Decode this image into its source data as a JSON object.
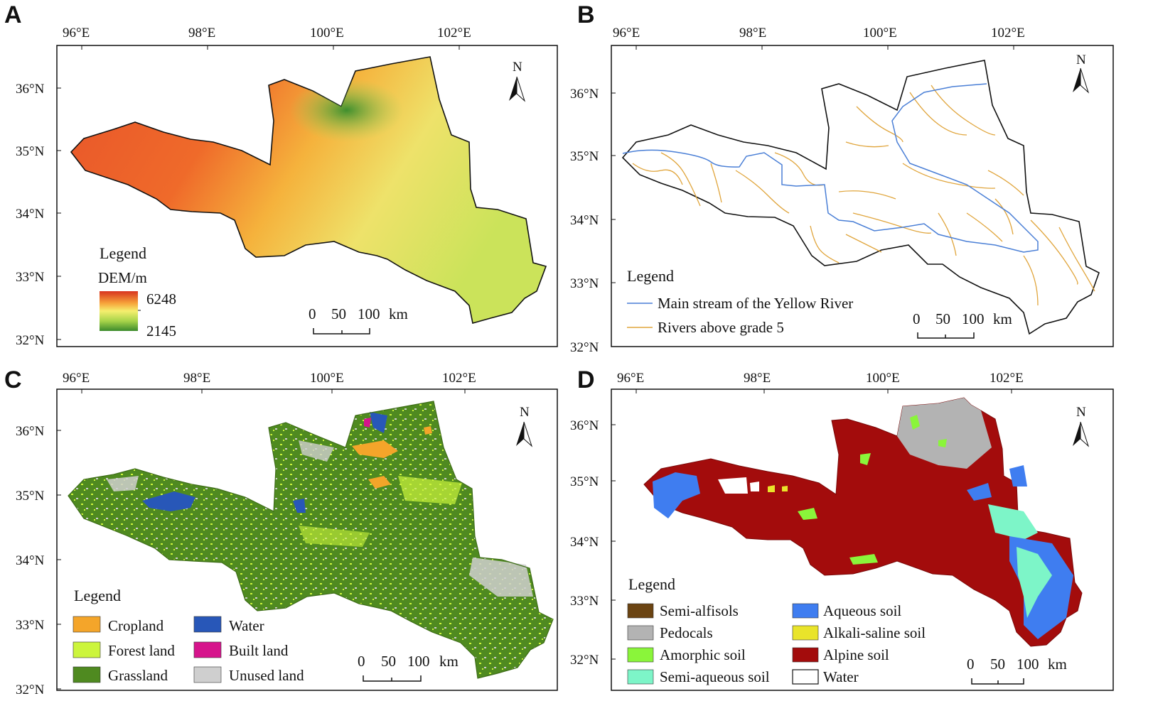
{
  "panels": {
    "a": {
      "letter": "A"
    },
    "b": {
      "letter": "B"
    },
    "c": {
      "letter": "C"
    },
    "d": {
      "letter": "D"
    }
  },
  "axes": {
    "lon": [
      "96°E",
      "98°E",
      "100°E",
      "102°E"
    ],
    "lat_top": [
      "36°N",
      "35°N",
      "34°N",
      "33°N",
      "32°N"
    ],
    "lat_bottom": [
      "36°N",
      "35°N",
      "34°N",
      "33°N",
      "32°N"
    ]
  },
  "north": "N",
  "scale": {
    "zero": "0",
    "mid": "50",
    "end": "100",
    "unit": "km"
  },
  "legend_title": "Legend",
  "dem": {
    "unit_label": "DEM/m",
    "max": "6248",
    "min": "2145",
    "colors": [
      "#d8331f",
      "#f6a33a",
      "#f5ef6e",
      "#a7d44a",
      "#3b8a2b"
    ]
  },
  "rivers": {
    "main": {
      "label": "Main stream of the Yellow River",
      "color": "#4a7fd6"
    },
    "grade5": {
      "label": "Rivers above grade 5",
      "color": "#e0a53c"
    }
  },
  "landuse": [
    {
      "label": "Cropland",
      "color": "#f4a52a"
    },
    {
      "label": "Water",
      "color": "#2857b8"
    },
    {
      "label": "Forest land",
      "color": "#ccf53c"
    },
    {
      "label": "Built land",
      "color": "#d6148c"
    },
    {
      "label": "Grassland",
      "color": "#4f8a20"
    },
    {
      "label": "Unused land",
      "color": "#cfcfcf"
    }
  ],
  "soil": [
    {
      "label": "Semi-alfisols",
      "color": "#6b4412"
    },
    {
      "label": "Aqueous soil",
      "color": "#3f7df0"
    },
    {
      "label": "Pedocals",
      "color": "#b3b3b3"
    },
    {
      "label": "Alkali-saline soil",
      "color": "#e9e42a"
    },
    {
      "label": "Amorphic soil",
      "color": "#8af53a"
    },
    {
      "label": "Alpine soil",
      "color": "#a30c0c"
    },
    {
      "label": "Semi-aqueous soil",
      "color": "#7df5c8"
    },
    {
      "label": "Water",
      "color": "#ffffff"
    }
  ]
}
